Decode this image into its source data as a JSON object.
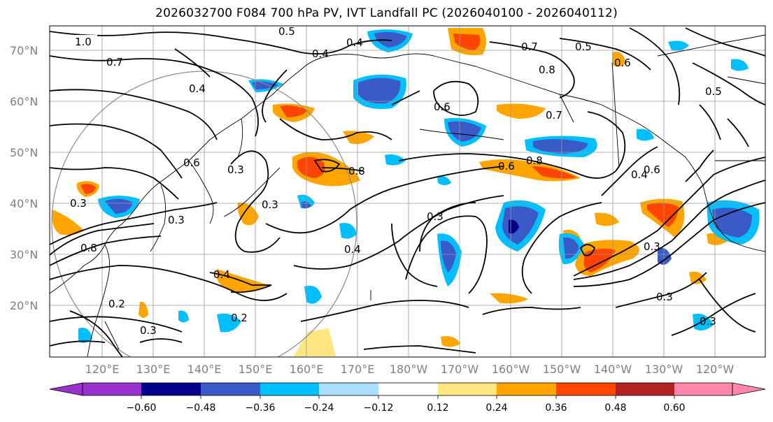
{
  "title": "2026032700 F084 700 hPa PV, IVT Landfall PC (2026040100 - 2026040112)",
  "lat_labels": [
    "70°N",
    "60°N",
    "50°N",
    "40°N",
    "30°N",
    "20°N"
  ],
  "lon_labels": [
    "120°E",
    "130°E",
    "140°E",
    "150°E",
    "160°E",
    "170°E",
    "180°W",
    "170°W",
    "160°W",
    "150°W",
    "140°W",
    "130°W",
    "120°W"
  ],
  "colorbar": {
    "ticks": [
      "−0.60",
      "−0.48",
      "−0.36",
      "−0.24",
      "−0.12",
      "0.12",
      "0.24",
      "0.36",
      "0.48",
      "0.60"
    ],
    "colors": [
      "#9932cc",
      "#00008b",
      "#3a5bc7",
      "#00bfff",
      "#aadfff",
      "#ffffff",
      "#ffe680",
      "#ffa500",
      "#ff4500",
      "#b22222",
      "#ff88aa"
    ]
  },
  "contour_labels": [
    "1.0",
    "0.5",
    "0.4",
    "0.4",
    "0.7",
    "0.5",
    "0.6",
    "0.6",
    "0.7",
    "0.8",
    "0.4",
    "0.6",
    "0.6",
    "0.7",
    "0.5",
    "0.3",
    "0.3",
    "0.8",
    "0.6",
    "0.8",
    "0.3",
    "0.3",
    "0.4",
    "0.3",
    "0.4",
    "0.2",
    "0.3",
    "0.2",
    "0.3",
    "0.3",
    "0.4",
    "0.3",
    "0.8"
  ],
  "fill_colors": {
    "orange": "#ffa500",
    "red": "#ff4500",
    "yellow": "#ffe680",
    "cyan": "#00bfff",
    "blue": "#3a5bc7",
    "navy": "#00008b",
    "lightblue": "#aadfff"
  }
}
